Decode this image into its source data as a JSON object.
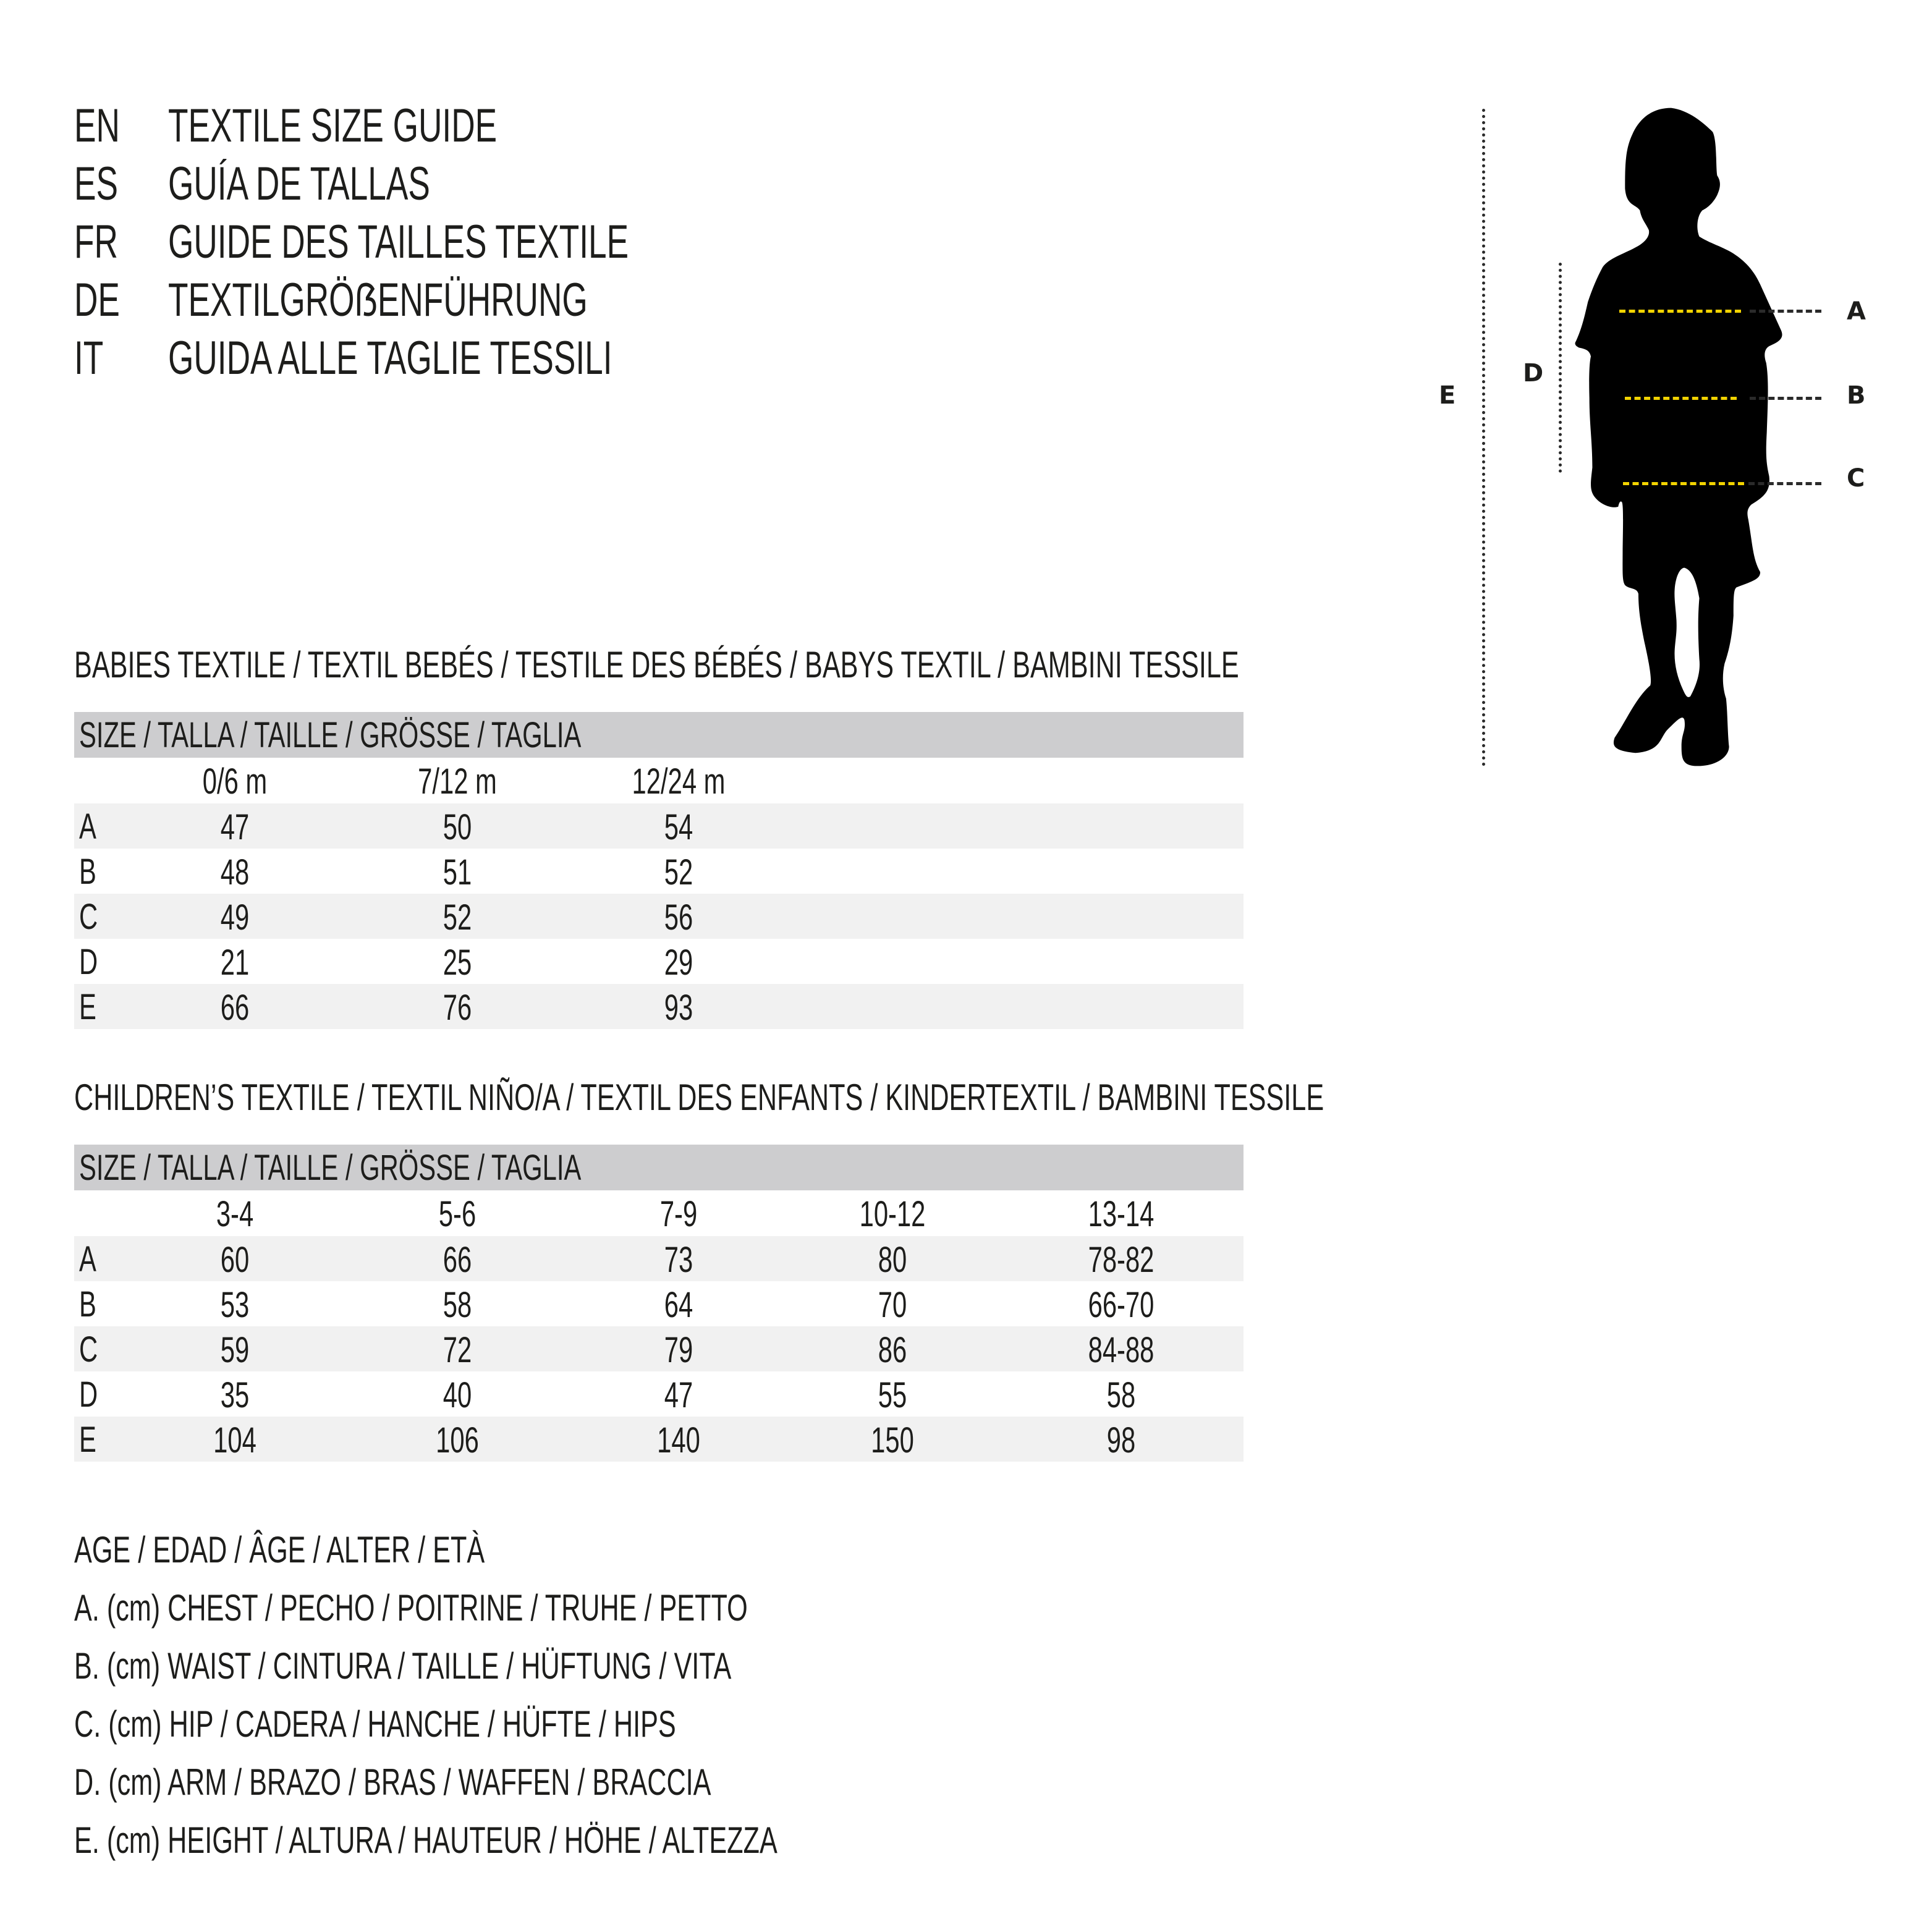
{
  "titles": [
    {
      "lang": "EN",
      "text": "TEXTILE SIZE GUIDE"
    },
    {
      "lang": "ES",
      "text": "GUÍA DE TALLAS"
    },
    {
      "lang": "FR",
      "text": "GUIDE DES TAILLES TEXTILE"
    },
    {
      "lang": "DE",
      "text": "TEXTILGRÖẞENFÜHRUNG"
    },
    {
      "lang": "IT",
      "text": "GUIDA ALLE TAGLIE TESSILI"
    }
  ],
  "figure": {
    "labels": {
      "a": "A",
      "b": "B",
      "c": "C",
      "d": "D",
      "e": "E"
    },
    "line_color": "#f2d300"
  },
  "babies": {
    "heading": "BABIES TEXTILE / TEXTIL BEBÉS / TESTILE DES BÉBÉS / BABYS TEXTIL / BAMBINI TESSILE",
    "size_header": "SIZE / TALLA / TAILLE / GRÖSSE / TAGLIA",
    "columns": [
      "0/6 m",
      "7/12 m",
      "12/24 m"
    ],
    "rows": [
      {
        "label": "A",
        "values": [
          "47",
          "50",
          "54"
        ]
      },
      {
        "label": "B",
        "values": [
          "48",
          "51",
          "52"
        ]
      },
      {
        "label": "C",
        "values": [
          "49",
          "52",
          "56"
        ]
      },
      {
        "label": "D",
        "values": [
          "21",
          "25",
          "29"
        ]
      },
      {
        "label": "E",
        "values": [
          "66",
          "76",
          "93"
        ]
      }
    ]
  },
  "children": {
    "heading": "CHILDREN’S TEXTILE / TEXTIL NIÑO/A / TEXTIL DES ENFANTS / KINDERTEXTIL / BAMBINI TESSILE",
    "size_header": "SIZE / TALLA / TAILLE / GRÖSSE / TAGLIA",
    "columns": [
      "3-4",
      "5-6",
      "7-9",
      "10-12",
      "13-14"
    ],
    "rows": [
      {
        "label": "A",
        "values": [
          "60",
          "66",
          "73",
          "80",
          "78-82"
        ]
      },
      {
        "label": "B",
        "values": [
          "53",
          "58",
          "64",
          "70",
          "66-70"
        ]
      },
      {
        "label": "C",
        "values": [
          "59",
          "72",
          "79",
          "86",
          "84-88"
        ]
      },
      {
        "label": "D",
        "values": [
          "35",
          "40",
          "47",
          "55",
          "58"
        ]
      },
      {
        "label": "E",
        "values": [
          "104",
          "106",
          "140",
          "150",
          "98"
        ]
      }
    ]
  },
  "legend": [
    "AGE / EDAD / ÂGE / ALTER / ETÀ",
    "A. (cm) CHEST / PECHO / POITRINE / TRUHE / PETTO",
    "B. (cm) WAIST / CINTURA / TAILLE / HÜFTUNG / VITA",
    "C. (cm) HIP / CADERA / HANCHE / HÜFTE / HIPS",
    "D. (cm) ARM / BRAZO / BRAS / WAFFEN / BRACCIA",
    "E. (cm) HEIGHT / ALTURA / HAUTEUR / HÖHE / ALTEZZA"
  ]
}
